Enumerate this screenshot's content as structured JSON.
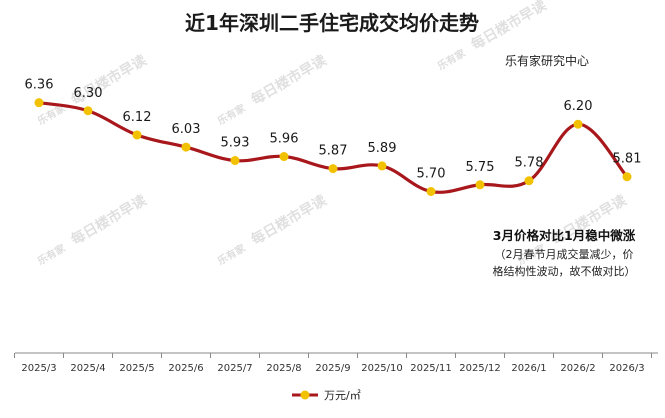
{
  "chart_data": {
    "type": "line",
    "title": "近1年深圳二手住宅成交均价走势",
    "source": "乐有家研究中心",
    "categories": [
      "2025/3",
      "2025/4",
      "2025/5",
      "2025/6",
      "2025/7",
      "2025/8",
      "2025/9",
      "2025/10",
      "2025/11",
      "2025/12",
      "2026/1",
      "2026/2",
      "2026/3"
    ],
    "series": [
      {
        "name": "万元/㎡",
        "values": [
          6.36,
          6.3,
          6.12,
          6.03,
          5.93,
          5.96,
          5.87,
          5.89,
          5.7,
          5.75,
          5.78,
          6.2,
          5.81
        ],
        "labels": [
          "6.36",
          "6.30",
          "6.12",
          "6.03",
          "5.93",
          "5.96",
          "5.87",
          "5.89",
          "5.70",
          "5.75",
          "5.78",
          "6.20",
          "5.81"
        ]
      }
    ],
    "ylim": [
      4.5,
      6.9
    ],
    "grid": false,
    "legend": "bottom-center",
    "line_color": "#a8171c",
    "marker_color": "#f2c200",
    "annotation": {
      "main": "3月价格对比1月稳中微涨",
      "sub_lines": [
        "（2月春节月成交量减少，价",
        "格结构性波动，故不做对比）"
      ]
    },
    "watermark": {
      "logo": "乐有家",
      "text": "每日楼市早读"
    }
  }
}
